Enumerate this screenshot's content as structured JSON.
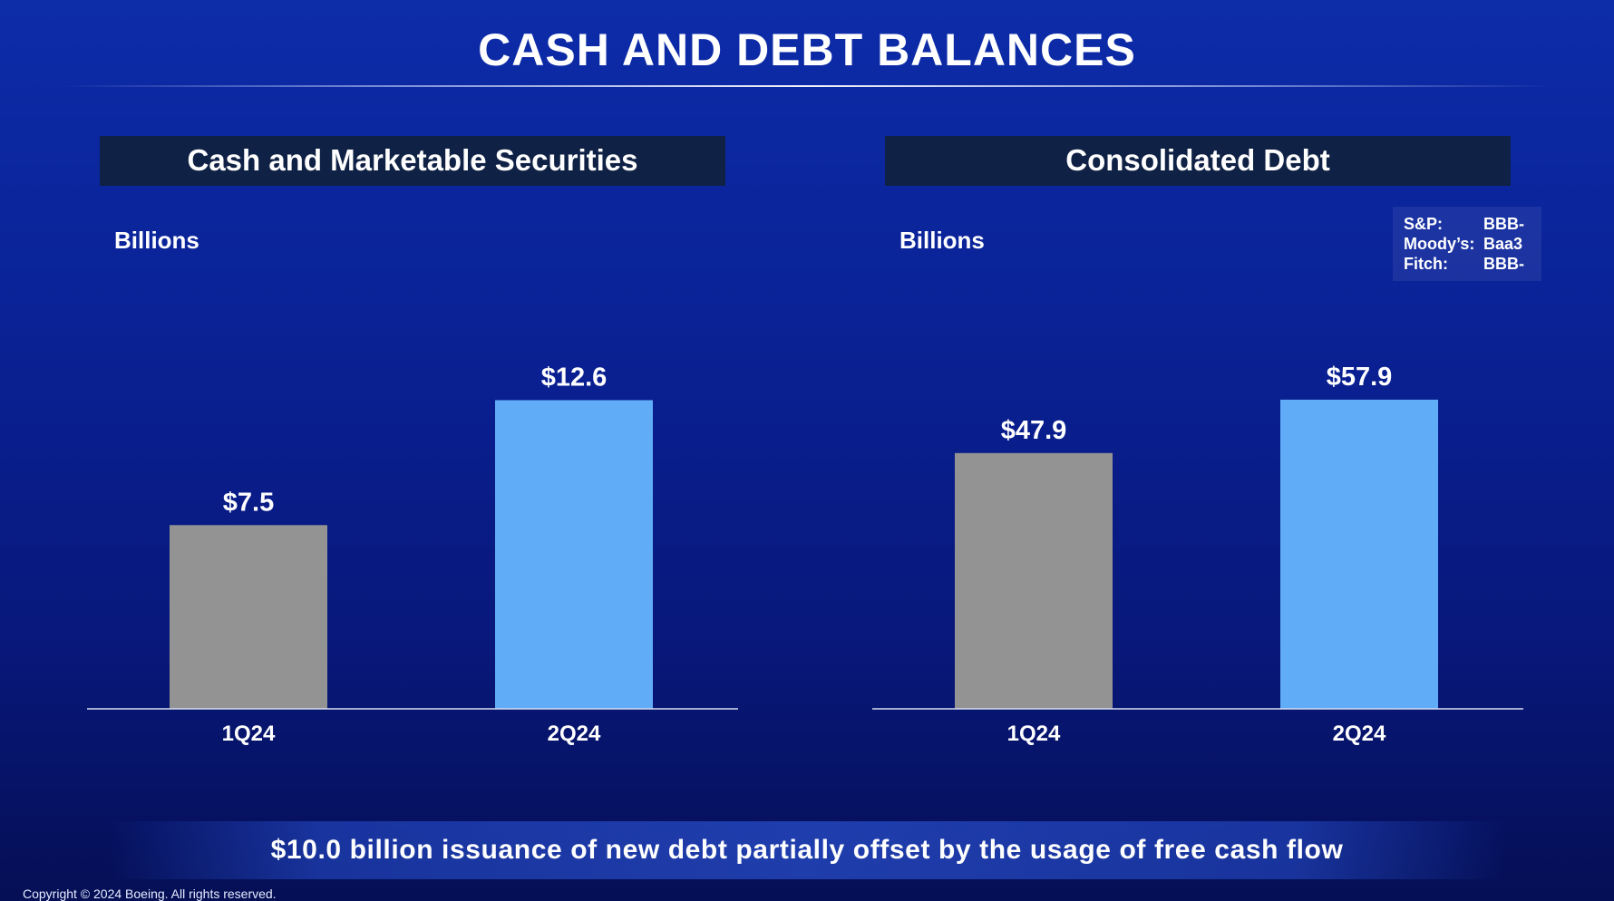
{
  "title": "CASH AND DEBT BALANCES",
  "footer": {
    "summary": "$10.0 billion issuance of new debt partially offset by the usage of free cash flow",
    "copyright": "Copyright © 2024 Boeing. All rights reserved."
  },
  "ratings": [
    {
      "agency": "S&P:",
      "rating": "BBB-"
    },
    {
      "agency": "Moody’s:",
      "rating": "Baa3"
    },
    {
      "agency": "Fitch:",
      "rating": "BBB-"
    }
  ],
  "colors": {
    "prior_quarter_bar": "#939393",
    "current_quarter_bar": "#60acf7",
    "panel_header": "#0f2145"
  },
  "chart_data": [
    {
      "type": "bar",
      "title": "Cash and Marketable Securities",
      "ylabel": "Billions",
      "categories": [
        "1Q24",
        "2Q24"
      ],
      "values": [
        7.5,
        12.6
      ],
      "data_labels": [
        "$7.5",
        "$12.6"
      ],
      "ylim": [
        0,
        14.8
      ],
      "grid": false
    },
    {
      "type": "bar",
      "title": "Consolidated Debt",
      "ylabel": "Billions",
      "categories": [
        "1Q24",
        "2Q24"
      ],
      "values": [
        47.9,
        57.9
      ],
      "data_labels": [
        "$47.9",
        "$57.9"
      ],
      "ylim": [
        0,
        67.9
      ],
      "grid": false
    }
  ]
}
